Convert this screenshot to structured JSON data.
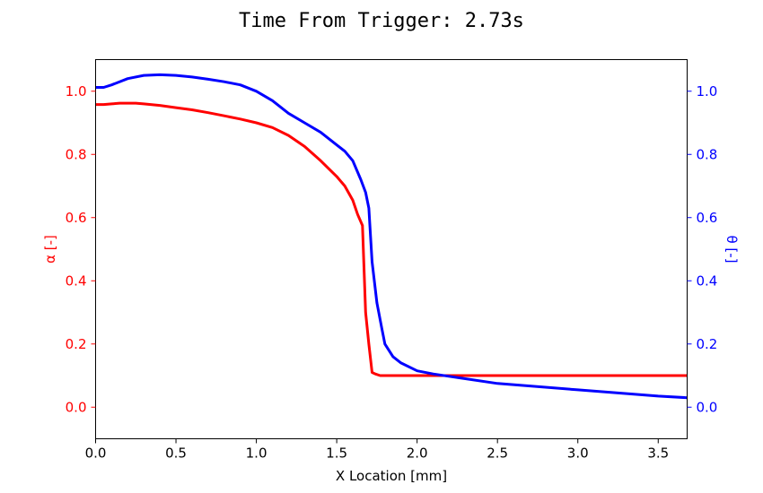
{
  "chart_data": {
    "type": "line",
    "title": "Time From Trigger: 2.73s",
    "xlabel": "X Location [mm]",
    "ylabel_left": "α [-]",
    "ylabel_right": "θ [-]",
    "xlim": [
      0,
      3.68
    ],
    "ylim": [
      -0.1,
      1.1
    ],
    "x_ticks": [
      "0.0",
      "0.5",
      "1.0",
      "1.5",
      "2.0",
      "2.5",
      "3.0",
      "3.5"
    ],
    "y_ticks": [
      "0.0",
      "0.2",
      "0.4",
      "0.6",
      "0.8",
      "1.0"
    ],
    "grid": false,
    "colors": {
      "left_axis": "#ff0000",
      "right_axis": "#0000ff"
    },
    "series": [
      {
        "axis": "left",
        "color": "#ff0000",
        "x": [
          0.0,
          0.05,
          0.1,
          0.15,
          0.2,
          0.25,
          0.3,
          0.4,
          0.5,
          0.6,
          0.7,
          0.8,
          0.9,
          1.0,
          1.1,
          1.2,
          1.3,
          1.4,
          1.5,
          1.55,
          1.6,
          1.63,
          1.66,
          1.68,
          1.7,
          1.72,
          1.74,
          1.77,
          1.8,
          2.0,
          2.5,
          3.0,
          3.5,
          3.68
        ],
        "y": [
          0.958,
          0.958,
          0.96,
          0.962,
          0.962,
          0.962,
          0.96,
          0.955,
          0.948,
          0.941,
          0.932,
          0.922,
          0.912,
          0.9,
          0.885,
          0.86,
          0.825,
          0.78,
          0.73,
          0.7,
          0.655,
          0.61,
          0.575,
          0.3,
          0.2,
          0.11,
          0.105,
          0.1,
          0.1,
          0.1,
          0.1,
          0.1,
          0.1,
          0.1
        ]
      },
      {
        "axis": "right",
        "color": "#0000ff",
        "x": [
          0.0,
          0.05,
          0.1,
          0.2,
          0.3,
          0.4,
          0.5,
          0.6,
          0.7,
          0.8,
          0.9,
          1.0,
          1.1,
          1.2,
          1.3,
          1.4,
          1.5,
          1.55,
          1.6,
          1.65,
          1.68,
          1.7,
          1.72,
          1.75,
          1.78,
          1.8,
          1.85,
          1.9,
          2.0,
          2.1,
          2.3,
          2.5,
          3.0,
          3.5,
          3.68
        ],
        "y": [
          1.012,
          1.012,
          1.02,
          1.04,
          1.05,
          1.052,
          1.05,
          1.045,
          1.038,
          1.03,
          1.02,
          1.0,
          0.97,
          0.93,
          0.9,
          0.87,
          0.83,
          0.81,
          0.78,
          0.72,
          0.68,
          0.63,
          0.46,
          0.33,
          0.25,
          0.2,
          0.16,
          0.14,
          0.115,
          0.105,
          0.09,
          0.075,
          0.055,
          0.035,
          0.03
        ]
      }
    ]
  }
}
